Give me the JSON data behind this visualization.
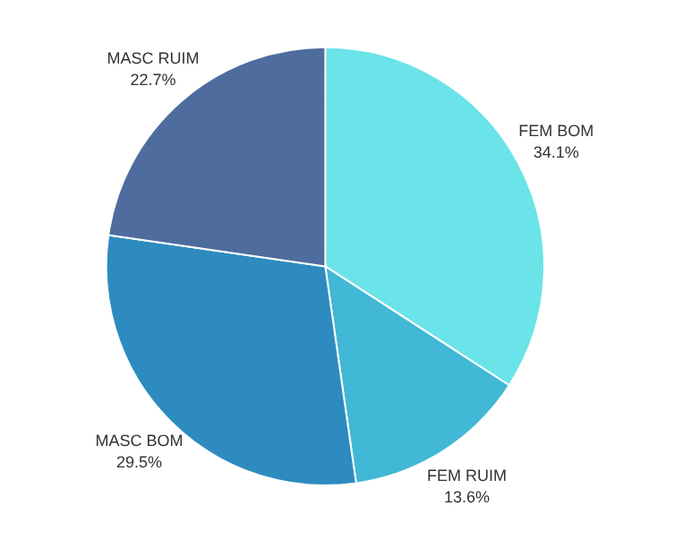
{
  "chart_data": {
    "type": "pie",
    "categories": [
      "FEM BOM",
      "FEM RUIM",
      "MASC BOM",
      "MASC RUIM"
    ],
    "values": [
      34.1,
      13.6,
      29.5,
      22.7
    ],
    "value_labels": [
      "34.1%",
      "13.6%",
      "29.5%",
      "22.7%"
    ],
    "colors": [
      "#6ae4e8",
      "#41b8d5",
      "#2e8bbf",
      "#4f6c9e"
    ]
  }
}
